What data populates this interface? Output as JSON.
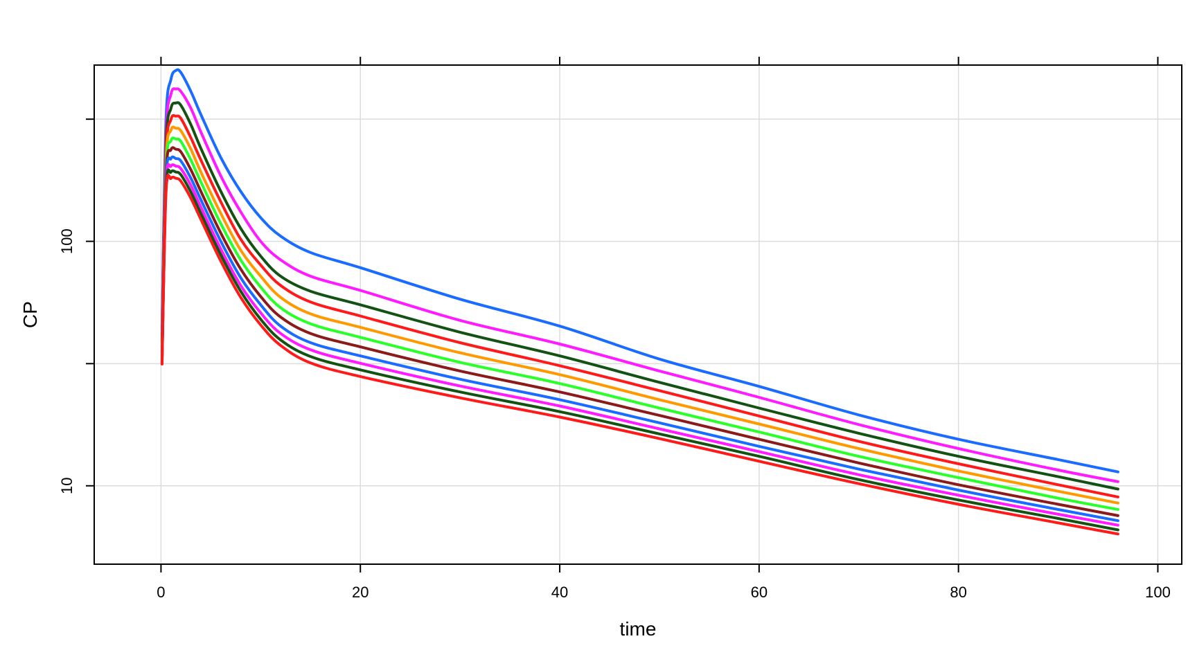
{
  "chart_data": {
    "type": "line",
    "title": "",
    "xlabel": "time",
    "ylabel": "CP",
    "xlim": [
      -6.7,
      102.4
    ],
    "ylim": [
      4.78,
      526
    ],
    "yscale": "log",
    "grid": true,
    "legend": "none",
    "x_ticks": [
      0,
      20,
      40,
      60,
      80,
      100
    ],
    "x_tick_labels": [
      "0",
      "20",
      "40",
      "60",
      "80",
      "100"
    ],
    "y_ticks": [
      10,
      31.6,
      100,
      316
    ],
    "y_tick_labels": [
      "10",
      "",
      "100",
      ""
    ],
    "x": [
      0.1,
      0.5,
      1,
      1.5,
      2,
      3,
      4,
      6,
      8,
      10,
      12,
      15,
      20,
      30,
      40,
      50,
      60,
      70,
      80,
      90,
      96
    ],
    "series": [
      {
        "color": "#1a6bff",
        "values": [
          44,
          310,
          460,
          500,
          490,
          410,
          330,
          220,
          160,
          125,
          105,
          90,
          78,
          58,
          45,
          33,
          25.5,
          19.5,
          15.5,
          12.8,
          11.4
        ]
      },
      {
        "color": "#ff1aff",
        "values": [
          39,
          270,
          400,
          420,
          410,
          350,
          280,
          185,
          132,
          100,
          84,
          72,
          63,
          47.5,
          38,
          29.5,
          23,
          17.8,
          14.2,
          11.6,
          10.4
        ]
      },
      {
        "color": "#145214",
        "values": [
          37,
          245,
          350,
          368,
          360,
          300,
          240,
          160,
          113,
          87,
          72,
          62.5,
          55,
          42.5,
          34,
          26.5,
          20.8,
          16.4,
          13.2,
          10.9,
          9.7
        ]
      },
      {
        "color": "#ff1a1a",
        "values": [
          35,
          225,
          315,
          325,
          318,
          265,
          215,
          145,
          102,
          80,
          66,
          56.5,
          49.5,
          38.5,
          31,
          24.5,
          19.3,
          15.2,
          12.3,
          10.1,
          9.0
        ]
      },
      {
        "color": "#ff9900",
        "values": [
          34,
          210,
          285,
          290,
          283,
          238,
          192,
          130,
          92,
          72,
          59,
          50.5,
          44.5,
          35,
          28.5,
          22.5,
          17.9,
          14.2,
          11.5,
          9.5,
          8.5
        ]
      },
      {
        "color": "#2aff2a",
        "values": [
          33,
          197,
          258,
          262,
          256,
          215,
          175,
          118,
          84,
          65,
          53.5,
          46,
          40.5,
          32,
          26.2,
          20.8,
          16.6,
          13.2,
          10.8,
          8.9,
          8.0
        ]
      },
      {
        "color": "#8b1a1a",
        "values": [
          32.5,
          187,
          237,
          238,
          232,
          196,
          160,
          108,
          77,
          59.5,
          49,
          42,
          37,
          29.5,
          24.2,
          19.4,
          15.5,
          12.4,
          10.1,
          8.4,
          7.55
        ]
      },
      {
        "color": "#1a6bff",
        "values": [
          32,
          178,
          218,
          218,
          213,
          181,
          148,
          100,
          71,
          55,
          45,
          38.5,
          34,
          27.3,
          22.5,
          18.1,
          14.5,
          11.7,
          9.6,
          8.0,
          7.2
        ]
      },
      {
        "color": "#ff1aff",
        "values": [
          32,
          170,
          203,
          203,
          198,
          169,
          138,
          93,
          66,
          51,
          42,
          36,
          31.7,
          25.6,
          21.2,
          17.1,
          13.8,
          11.1,
          9.15,
          7.65,
          6.9
        ]
      },
      {
        "color": "#145214",
        "values": [
          31.5,
          163,
          192,
          192,
          187,
          159,
          130,
          88,
          62.5,
          48,
          39.5,
          33.8,
          29.8,
          24.2,
          20.1,
          16.3,
          13.2,
          10.6,
          8.75,
          7.35,
          6.6
        ]
      },
      {
        "color": "#ff1a1a",
        "values": [
          31.5,
          157,
          181,
          181,
          176,
          150,
          123,
          83,
          59,
          45.5,
          37.5,
          31.8,
          28,
          22.9,
          19.1,
          15.6,
          12.6,
          10.2,
          8.4,
          7.05,
          6.35
        ]
      }
    ]
  }
}
